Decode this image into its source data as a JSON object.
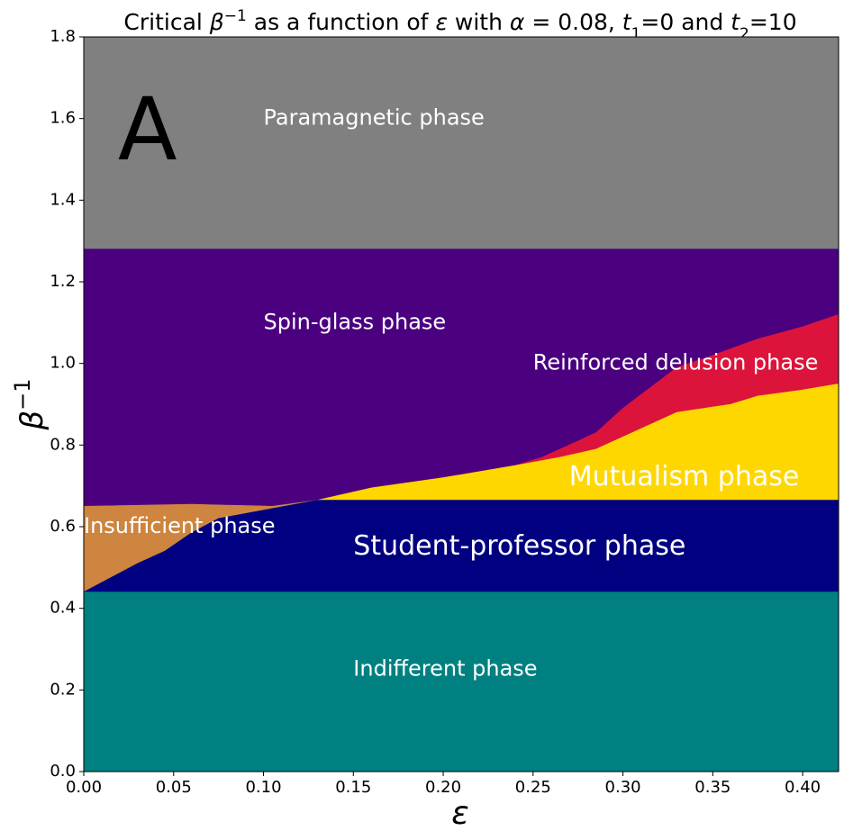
{
  "chart_data": {
    "type": "area",
    "title_parts": {
      "t0": "Critical ",
      "beta": "β",
      "sup": "−1",
      "t1": " as a function of ",
      "eps": "ε",
      "t2": " with ",
      "alpha": "α",
      "t3": " = 0.08, ",
      "tvar1": "t",
      "tsub1": "1",
      "t4": "=0 and ",
      "tvar2": "t",
      "tsub2": "2",
      "t5": "=10"
    },
    "xlabel": "ε",
    "ylabel": {
      "base": "β",
      "sup": "−1"
    },
    "xlim": [
      0,
      0.42
    ],
    "ylim": [
      0,
      1.8
    ],
    "xticks": [
      {
        "value": 0.0,
        "label": "0.00"
      },
      {
        "value": 0.05,
        "label": "0.05"
      },
      {
        "value": 0.1,
        "label": "0.10"
      },
      {
        "value": 0.15,
        "label": "0.15"
      },
      {
        "value": 0.2,
        "label": "0.20"
      },
      {
        "value": 0.25,
        "label": "0.25"
      },
      {
        "value": 0.3,
        "label": "0.30"
      },
      {
        "value": 0.35,
        "label": "0.35"
      },
      {
        "value": 0.4,
        "label": "0.40"
      }
    ],
    "yticks": [
      {
        "value": 0.0,
        "label": "0.0"
      },
      {
        "value": 0.2,
        "label": "0.2"
      },
      {
        "value": 0.4,
        "label": "0.4"
      },
      {
        "value": 0.6,
        "label": "0.6"
      },
      {
        "value": 0.8,
        "label": "0.8"
      },
      {
        "value": 1.0,
        "label": "1.0"
      },
      {
        "value": 1.2,
        "label": "1.2"
      },
      {
        "value": 1.4,
        "label": "1.4"
      },
      {
        "value": 1.6,
        "label": "1.6"
      },
      {
        "value": 1.8,
        "label": "1.8"
      }
    ],
    "panel_letter": {
      "text": "A",
      "x": 0.019,
      "y": 1.5
    },
    "regions": [
      {
        "id": "paramagnetic",
        "label": "Paramagnetic phase",
        "color": "#808080",
        "polygon": [
          [
            0,
            1.28
          ],
          [
            0.42,
            1.28
          ],
          [
            0.42,
            1.8
          ],
          [
            0,
            1.8
          ]
        ],
        "label_pos": {
          "x": 0.1,
          "y": 1.6,
          "size": "medium"
        }
      },
      {
        "id": "spin-glass",
        "label": "Spin-glass phase",
        "color": "#4b0080",
        "polygon": [
          [
            0,
            0.65
          ],
          [
            0.42,
            0.65
          ],
          [
            0.42,
            1.28
          ],
          [
            0,
            1.28
          ]
        ],
        "label_pos": {
          "x": 0.1,
          "y": 1.1,
          "size": "medium"
        }
      },
      {
        "id": "reinforced-delusion",
        "label": "Reinforced delusion phase",
        "color": "#dc143c",
        "polygon": [
          [
            0.13,
            0.665
          ],
          [
            0.16,
            0.695
          ],
          [
            0.2,
            0.72
          ],
          [
            0.24,
            0.75
          ],
          [
            0.255,
            0.77
          ],
          [
            0.285,
            0.83
          ],
          [
            0.3,
            0.89
          ],
          [
            0.315,
            0.94
          ],
          [
            0.33,
            0.99
          ],
          [
            0.35,
            1.02
          ],
          [
            0.375,
            1.06
          ],
          [
            0.4,
            1.09
          ],
          [
            0.42,
            1.12
          ],
          [
            0.42,
            0.665
          ]
        ],
        "label_pos": {
          "x": 0.25,
          "y": 1.0,
          "size": "medium"
        }
      },
      {
        "id": "mutualism",
        "label": "Mutualism phase",
        "color": "#ffd700",
        "polygon": [
          [
            0.13,
            0.665
          ],
          [
            0.16,
            0.695
          ],
          [
            0.2,
            0.72
          ],
          [
            0.24,
            0.75
          ],
          [
            0.265,
            0.77
          ],
          [
            0.285,
            0.79
          ],
          [
            0.3,
            0.82
          ],
          [
            0.33,
            0.88
          ],
          [
            0.36,
            0.9
          ],
          [
            0.375,
            0.92
          ],
          [
            0.4,
            0.935
          ],
          [
            0.42,
            0.95
          ],
          [
            0.42,
            0.665
          ]
        ],
        "label_pos": {
          "x": 0.27,
          "y": 0.72,
          "size": "large"
        }
      },
      {
        "id": "insufficient",
        "label": "Insufficient phase",
        "color": "#cd853f",
        "polygon": [
          [
            0,
            0.44
          ],
          [
            0,
            0.65
          ],
          [
            0.06,
            0.655
          ],
          [
            0.105,
            0.65
          ],
          [
            0.13,
            0.665
          ],
          [
            0.075,
            0.62
          ],
          [
            0.06,
            0.585
          ],
          [
            0.045,
            0.54
          ],
          [
            0.03,
            0.51
          ],
          [
            0.015,
            0.475
          ]
        ],
        "label_pos": {
          "x": 0.0,
          "y": 0.6,
          "size": "medium"
        }
      },
      {
        "id": "student-professor",
        "label": "Student-professor phase",
        "color": "#000080",
        "polygon": [
          [
            0,
            0.44
          ],
          [
            0.015,
            0.475
          ],
          [
            0.03,
            0.51
          ],
          [
            0.045,
            0.54
          ],
          [
            0.06,
            0.585
          ],
          [
            0.075,
            0.62
          ],
          [
            0.13,
            0.665
          ],
          [
            0.42,
            0.665
          ],
          [
            0.42,
            0.44
          ]
        ],
        "label_pos": {
          "x": 0.15,
          "y": 0.55,
          "size": "large"
        }
      },
      {
        "id": "indifferent",
        "label": "Indifferent phase",
        "color": "#008080",
        "polygon": [
          [
            0,
            0
          ],
          [
            0.42,
            0
          ],
          [
            0.42,
            0.44
          ],
          [
            0,
            0.44
          ]
        ],
        "label_pos": {
          "x": 0.15,
          "y": 0.25,
          "size": "medium"
        }
      }
    ]
  }
}
